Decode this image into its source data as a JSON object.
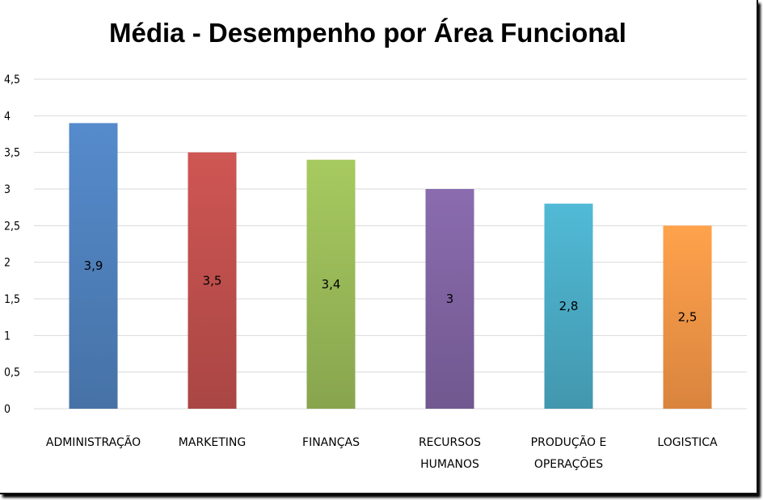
{
  "chart_data": {
    "type": "bar",
    "title": "Média - Desempenho por Área Funcional",
    "categories": [
      [
        "ADMINISTRAÇÃO"
      ],
      [
        "MARKETING"
      ],
      [
        "FINANÇAS"
      ],
      [
        "RECURSOS",
        "HUMANOS"
      ],
      [
        "PRODUÇÃO E",
        "OPERAÇÕES"
      ],
      [
        "LOGISTICA"
      ]
    ],
    "values": [
      3.9,
      3.5,
      3.4,
      3,
      2.8,
      2.5
    ],
    "data_labels": [
      "3,9",
      "3,5",
      "3,4",
      "3",
      "2,8",
      "2,5"
    ],
    "colors": [
      "#4f81bd",
      "#c0504d",
      "#9bbb59",
      "#8064a2",
      "#4bacc6",
      "#f79646"
    ],
    "ylim": [
      0,
      4.5
    ],
    "yticks": [
      "0",
      "0,5",
      "1",
      "1,5",
      "2",
      "2,5",
      "3",
      "3,5",
      "4",
      "4,5"
    ],
    "xlabel": "",
    "ylabel": "",
    "grid": true,
    "legend": "none"
  }
}
